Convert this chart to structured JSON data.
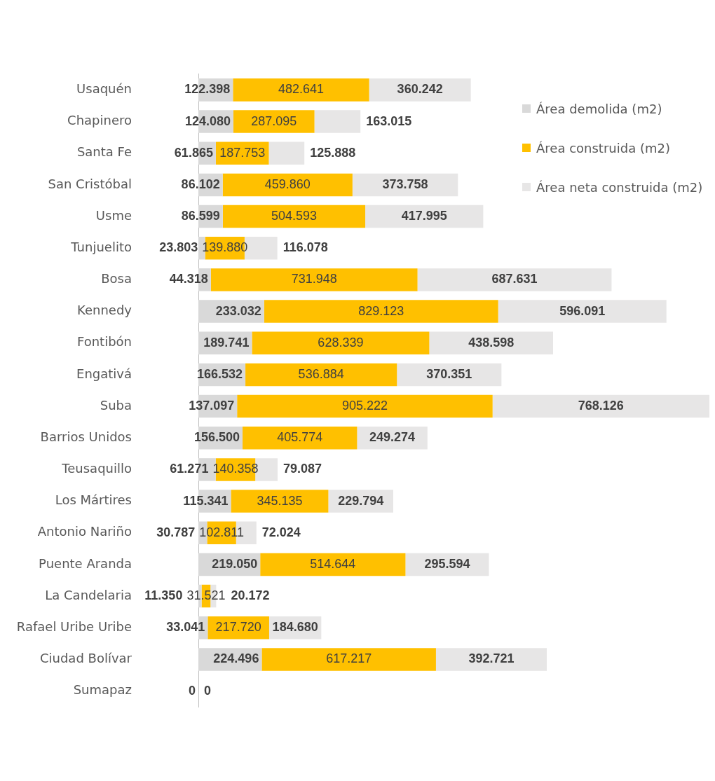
{
  "chart_data": {
    "type": "bar",
    "orientation": "horizontal",
    "stacked": true,
    "legend": "right",
    "tick_labels": "y",
    "categories": [
      "Usaquén",
      "Chapinero",
      "Santa Fe",
      "San Cristóbal",
      "Usme",
      "Tunjuelito",
      "Bosa",
      "Kennedy",
      "Fontibón",
      "Engativá",
      "Suba",
      "Barrios Unidos",
      "Teusaquillo",
      "Los Mártires",
      "Antonio Nariño",
      "Puente Aranda",
      "La Candelaria",
      "Rafael Uribe Uribe",
      "Ciudad Bolívar",
      "Sumapaz"
    ],
    "series": [
      {
        "name": "Área demolida (m2)",
        "color": "#d9d9d9",
        "values": [
          122398,
          124080,
          61865,
          86102,
          86599,
          23803,
          44318,
          233032,
          189741,
          166532,
          137097,
          156500,
          61271,
          115341,
          30787,
          219050,
          11350,
          33041,
          224496,
          0
        ],
        "value_labels": [
          "122.398",
          "124.080",
          "61.865",
          "86.102",
          "86.599",
          "23.803",
          "44.318",
          "233.032",
          "189.741",
          "166.532",
          "137.097",
          "156.500",
          "61.271",
          "115.341",
          "30.787",
          "219.050",
          "11.350",
          "33.041",
          "224.496",
          "0"
        ]
      },
      {
        "name": "Área construida (m2)",
        "color": "#ffc000",
        "values": [
          482641,
          287095,
          187753,
          459860,
          504593,
          139880,
          731948,
          829123,
          628339,
          536884,
          905222,
          405774,
          140358,
          345135,
          102811,
          514644,
          31521,
          217720,
          617217,
          0
        ],
        "value_labels": [
          "482.641",
          "287.095",
          "187.753",
          "459.860",
          "504.593",
          "139.880",
          "731.948",
          "829.123",
          "628.339",
          "536.884",
          "905.222",
          "405.774",
          "140.358",
          "345.135",
          "102.811",
          "514.644",
          "31.521",
          "217.720",
          "617.217",
          null
        ]
      },
      {
        "name": "Área neta construida (m2)",
        "color": "#e7e6e6",
        "values": [
          360242,
          163015,
          125888,
          373758,
          417995,
          116078,
          687631,
          596091,
          438598,
          370351,
          768126,
          249274,
          79087,
          229794,
          72024,
          295594,
          20172,
          184680,
          392721,
          0
        ],
        "value_labels": [
          "360.242",
          "163.015",
          "125.888",
          "373.758",
          "417.995",
          "116.078",
          "687.631",
          "596.091",
          "438.598",
          "370.351",
          "768.126",
          "249.274",
          "79.087",
          "229.794",
          "72.024",
          "295.594",
          "20.172",
          "184.680",
          "392.721",
          "0"
        ]
      }
    ]
  }
}
